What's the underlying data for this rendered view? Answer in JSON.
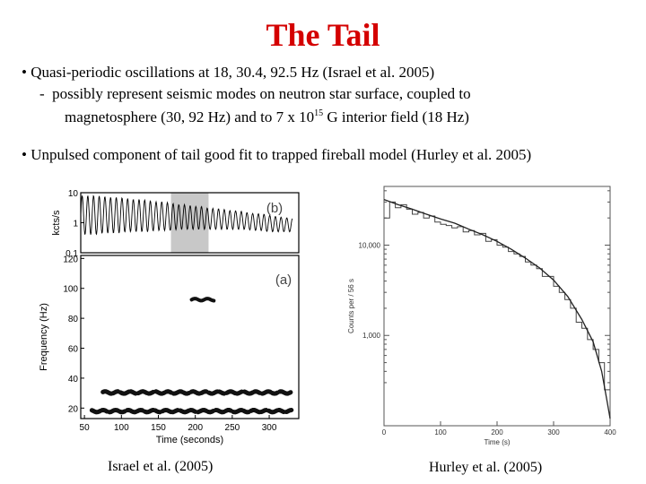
{
  "slide": {
    "title": "The Tail",
    "bullet1": {
      "bullet_char": "•",
      "text": "Quasi-periodic oscillations at 18, 30.4, 92.5 Hz (Israel et al. 2005)",
      "sub_dash": "-",
      "sub_line1": "possibly represent seismic modes on neutron star surface, coupled to",
      "sub_line2_pre": "magnetosphere (30, 92 Hz) and to 7 x 10",
      "sub_line2_sup": "15",
      "sub_line2_post": " G interior field (18 Hz)"
    },
    "bullet2": {
      "bullet_char": "•",
      "text": "Unpulsed component of tail good fit to trapped fireball model  (Hurley et al. 2005)"
    },
    "captions": {
      "left": "Israel et al. (2005)",
      "right": "Hurley et al. (2005)"
    }
  },
  "chart_data": [
    {
      "type": "line",
      "panel_label": "(b)",
      "ylabel": "kcts/s",
      "yscale": "log",
      "yticks": [
        "10",
        "1",
        "0.1"
      ],
      "ylim": [
        0.1,
        10
      ],
      "xlim": [
        50,
        340
      ],
      "x": [
        50,
        60,
        70,
        80,
        90,
        100,
        110,
        120,
        130,
        140,
        150,
        160,
        170,
        180,
        190,
        200,
        210,
        220,
        230,
        240,
        250,
        260,
        270,
        280,
        290,
        300,
        310,
        320,
        330
      ],
      "envelope_max": [
        8,
        8,
        8,
        7.5,
        7,
        7,
        6.5,
        6,
        6,
        5.5,
        5,
        5,
        4.5,
        4,
        4,
        3.5,
        3.5,
        3,
        3,
        2.8,
        2.5,
        2.5,
        2.2,
        2,
        2,
        1.8,
        1.6,
        1.5,
        1.4
      ],
      "envelope_min": [
        0.4,
        0.4,
        0.4,
        0.45,
        0.45,
        0.45,
        0.5,
        0.5,
        0.5,
        0.5,
        0.55,
        0.55,
        0.55,
        0.6,
        0.6,
        0.6,
        0.6,
        0.6,
        0.6,
        0.6,
        0.6,
        0.6,
        0.6,
        0.55,
        0.55,
        0.5,
        0.5,
        0.5,
        0.5
      ],
      "shaded_interval": [
        170,
        220
      ]
    },
    {
      "type": "heatmap",
      "panel_label": "(a)",
      "xlabel": "Time (seconds)",
      "ylabel": "Frequency (Hz)",
      "xticks": [
        50,
        100,
        150,
        200,
        250,
        300
      ],
      "yticks": [
        20,
        40,
        60,
        80,
        100,
        120
      ],
      "xlim": [
        45,
        340
      ],
      "ylim": [
        13,
        122
      ],
      "features": [
        {
          "t_start": 195,
          "t_end": 225,
          "freq": 92.5
        },
        {
          "t_start": 75,
          "t_end": 330,
          "freq": 30.4
        },
        {
          "t_start": 60,
          "t_end": 330,
          "freq": 18
        }
      ]
    },
    {
      "type": "line",
      "xlabel": "Time (s)",
      "ylabel": "Counts per / 56 s",
      "yscale": "log",
      "yticks": [
        "10,000",
        "1,000"
      ],
      "xticks": [
        0,
        100,
        200,
        300,
        400
      ],
      "xlim": [
        0,
        400
      ],
      "series": [
        {
          "style": "histogram",
          "x": [
            0,
            10,
            20,
            30,
            40,
            50,
            60,
            70,
            80,
            90,
            100,
            110,
            120,
            130,
            140,
            150,
            160,
            170,
            180,
            190,
            200,
            210,
            220,
            230,
            240,
            250,
            260,
            270,
            280,
            290,
            300,
            310,
            320,
            330,
            340,
            350,
            360,
            370,
            380,
            390,
            400
          ],
          "y": [
            20000,
            30000,
            26000,
            28000,
            25000,
            22000,
            23000,
            20000,
            21000,
            18000,
            17000,
            16500,
            15500,
            16000,
            14000,
            14500,
            13000,
            13500,
            11000,
            11500,
            10000,
            9500,
            8500,
            8000,
            7500,
            6500,
            6000,
            5500,
            4500,
            4500,
            3500,
            3000,
            2500,
            2000,
            1400,
            1200,
            900,
            700,
            500,
            250,
            150
          ]
        },
        {
          "style": "smooth",
          "x": [
            0,
            25,
            50,
            75,
            100,
            125,
            150,
            175,
            200,
            225,
            250,
            275,
            300,
            325,
            350,
            370,
            385,
            395,
            400
          ],
          "y": [
            32000,
            28000,
            25000,
            22000,
            19500,
            17500,
            15000,
            13000,
            11000,
            9000,
            7200,
            5600,
            4100,
            2700,
            1500,
            850,
            400,
            180,
            120
          ]
        }
      ]
    }
  ]
}
